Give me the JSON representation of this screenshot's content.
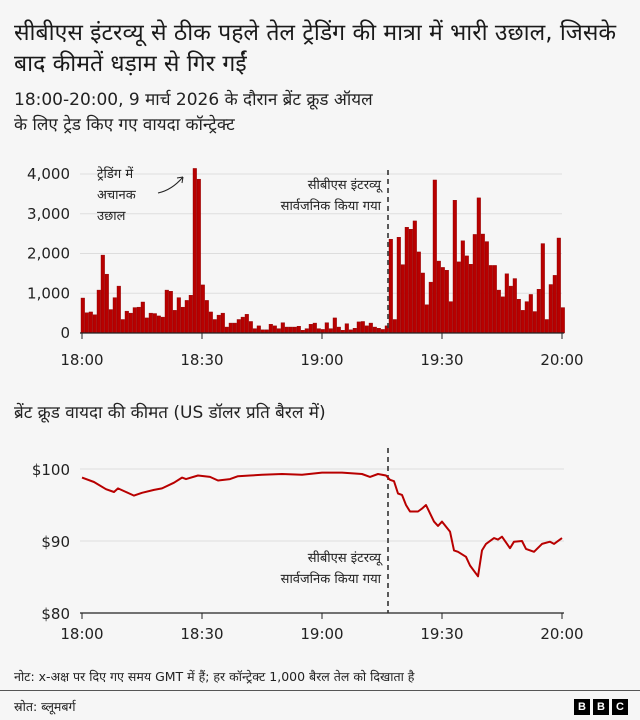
{
  "title": "सीबीएस इंटरव्यू से ठीक पहले तेल ट्रेडिंग की मात्रा में भारी उछाल, जिसके बाद कीमतें धड़ाम से गिर गईं",
  "subtitle_line1": "18:00-20:00, 9 मार्च 2026 के दौरान ब्रेंट क्रूड ऑयल",
  "subtitle_line2": "के लिए ट्रेड किए गए वायदा कॉन्ट्रेक्ट",
  "colors": {
    "bar": "#b80000",
    "line": "#b80000",
    "grid": "#dddddd"
  },
  "chart_data": [
    {
      "type": "bar",
      "title": "18:00-20:00, 9 मार्च 2026 के दौरान ब्रेंट क्रूड ऑयल के लिए ट्रेड किए गए वायदा कॉन्ट्रेक्ट",
      "x_unit": "minutes after 18:00",
      "ylim": [
        0,
        4000
      ],
      "yticks": [
        0,
        1000,
        2000,
        3000,
        4000
      ],
      "ytick_labels": [
        "0",
        "1,000",
        "2,000",
        "3,000",
        "4,000"
      ],
      "xticks": [
        0,
        30,
        60,
        90,
        120
      ],
      "xtick_labels": [
        "18:00",
        "18:30",
        "19:00",
        "19:30",
        "20:00"
      ],
      "grid": true,
      "values": [
        880,
        510,
        530,
        460,
        1080,
        1960,
        1480,
        590,
        890,
        1180,
        340,
        550,
        500,
        640,
        650,
        780,
        380,
        500,
        490,
        430,
        400,
        1080,
        1050,
        570,
        890,
        650,
        820,
        950,
        4140,
        3870,
        1210,
        820,
        530,
        340,
        450,
        500,
        150,
        250,
        250,
        340,
        400,
        470,
        290,
        110,
        180,
        80,
        80,
        220,
        180,
        110,
        260,
        150,
        150,
        150,
        170,
        70,
        110,
        220,
        250,
        110,
        90,
        260,
        110,
        380,
        150,
        70,
        235,
        80,
        120,
        280,
        290,
        180,
        250,
        150,
        120,
        90,
        180,
        2360,
        340,
        2410,
        1720,
        2660,
        2610,
        2820,
        2040,
        1510,
        710,
        1280,
        3850,
        1810,
        1650,
        1580,
        790,
        3340,
        1790,
        2320,
        1940,
        1730,
        2480,
        3400,
        2490,
        2300,
        1700,
        1700,
        1080,
        910,
        1490,
        1180,
        1370,
        850,
        570,
        790,
        970,
        540,
        1100,
        2250,
        340,
        1220,
        1450,
        2390,
        640
      ],
      "annotations": [
        {
          "text_lines": [
            "ट्रेडिंग में",
            "अचानक",
            "उछाल"
          ],
          "x": 28
        },
        {
          "text_lines": [
            "सीबीएस इंटरव्यू",
            "सार्वजनिक किया गया"
          ],
          "x": 76.5
        }
      ]
    },
    {
      "type": "line",
      "title": "ब्रेंट क्रूड वायदा की कीमत (US डॉलर प्रति बैरल में)",
      "x_unit": "minutes after 18:00",
      "ylim": [
        80,
        100
      ],
      "yticks": [
        80,
        90,
        100
      ],
      "ytick_labels": [
        "$80",
        "$90",
        "$100"
      ],
      "xticks": [
        0,
        30,
        60,
        90,
        120
      ],
      "xtick_labels": [
        "18:00",
        "18:30",
        "19:00",
        "19:30",
        "20:00"
      ],
      "grid": true,
      "x": [
        0,
        3,
        6,
        8,
        9,
        11,
        13,
        15,
        18,
        20,
        23,
        25,
        26,
        29,
        32,
        34,
        37,
        39,
        42,
        45,
        50,
        55,
        60,
        65,
        70,
        72,
        74,
        76,
        77,
        78,
        79,
        80,
        81,
        82,
        84,
        85,
        86,
        88,
        89,
        90,
        92,
        93,
        94,
        96,
        97,
        99,
        100,
        101,
        103,
        104,
        105,
        107,
        108,
        110,
        111,
        113,
        115,
        117,
        118,
        120
      ],
      "y": [
        98.8,
        98.2,
        97.2,
        96.8,
        97.3,
        96.8,
        96.3,
        96.7,
        97.1,
        97.3,
        98.1,
        98.8,
        98.6,
        99.1,
        98.9,
        98.4,
        98.6,
        99.0,
        99.1,
        99.2,
        99.3,
        99.2,
        99.5,
        99.5,
        99.3,
        98.9,
        99.3,
        99.1,
        98.5,
        98.3,
        96.6,
        96.4,
        95.0,
        94.1,
        94.1,
        94.5,
        95.0,
        92.7,
        92.1,
        92.7,
        91.3,
        88.7,
        88.5,
        87.8,
        86.6,
        85.1,
        88.7,
        89.6,
        90.4,
        90.2,
        90.6,
        89.0,
        89.9,
        90.0,
        88.9,
        88.5,
        89.6,
        89.9,
        89.6,
        90.4
      ],
      "annotations": [
        {
          "text_lines": [
            "सीबीएस इंटरव्यू",
            "सार्वजनिक किया गया"
          ],
          "x": 76.5
        }
      ]
    }
  ],
  "footer": {
    "note": "नोट: x-अक्ष पर दिए गए समय GMT में हैं; हर कॉन्ट्रेक्ट 1,000 बैरल तेल को दिखाता है",
    "source": "स्रोत: ब्लूमबर्ग",
    "logo": [
      "B",
      "B",
      "C"
    ]
  }
}
